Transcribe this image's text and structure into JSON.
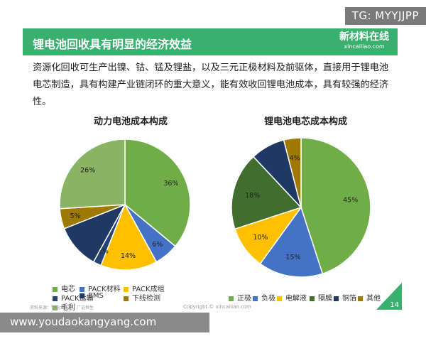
{
  "watermark_top": "TG: MYYJJPP",
  "header": {
    "title": "锂电池回收具有明显的经济效益",
    "logo_cn": "新材料在线",
    "logo_url": "xincailiao.com"
  },
  "paragraph": "资源化回收可生产出镍、钴、锰及锂盐，以及三元正极材料及前驱体，直接用于锂电池电芯制造，具有构建产业链闭环的重大意义，能有效收回锂电池成本，具有较强的经济性。",
  "footer": {
    "source": "资料来源：智电大数据、广证恒生",
    "copyright": "Copyright © xincailiao.com",
    "page": "14"
  },
  "watermark_bottom": "www.youdaokangyang.com",
  "chart_data": [
    {
      "type": "pie",
      "title": "动力电池成本构成",
      "slices": [
        {
          "label": "电芯",
          "value": 36,
          "color": "#70ad47",
          "label_text": "36%"
        },
        {
          "label": "PACK材料",
          "value": 6,
          "color": "#4472c4",
          "label_text": "6%"
        },
        {
          "label": "PACK成组",
          "value": 14,
          "color": "#ffc000",
          "label_text": "14%"
        },
        {
          "label": "PACK运输",
          "value": 2,
          "color": "#264478",
          "label_text": "2%"
        },
        {
          "label": "BMS",
          "value": 11,
          "color": "#1f3864",
          "label_text": ""
        },
        {
          "label": "下线检测",
          "value": 5,
          "color": "#9e7b00",
          "label_text": "5%"
        },
        {
          "label": "毛利",
          "value": 26,
          "color": "#8ab463",
          "label_text": "26%"
        }
      ],
      "legend": [
        "电芯",
        "PACK材料",
        "PACK成组",
        "PACK运输",
        "BMS",
        "下线检测",
        "毛利"
      ],
      "legend_colors": [
        "#70ad47",
        "#4472c4",
        "#ffc000",
        "#264478",
        "#1f3864",
        "#9e7b00",
        "#8ab463"
      ]
    },
    {
      "type": "pie",
      "title": "锂电池电芯成本构成",
      "slices": [
        {
          "label": "正极",
          "value": 45,
          "color": "#70ad47",
          "label_text": "45%"
        },
        {
          "label": "负极",
          "value": 15,
          "color": "#4472c4",
          "label_text": "15%"
        },
        {
          "label": "电解液",
          "value": 10,
          "color": "#ffc000",
          "label_text": "10%"
        },
        {
          "label": "隔膜",
          "value": 18,
          "color": "#3f6e2f",
          "label_text": "18%"
        },
        {
          "label": "铜箔",
          "value": 8,
          "color": "#1f3864",
          "label_text": ""
        },
        {
          "label": "其他",
          "value": 4,
          "color": "#9e7b00",
          "label_text": "4%"
        }
      ],
      "legend": [
        "正极",
        "负极",
        "电解液",
        "隔膜",
        "铜箔",
        "其他"
      ],
      "legend_colors": [
        "#70ad47",
        "#4472c4",
        "#ffc000",
        "#3f6e2f",
        "#1f3864",
        "#9e7b00"
      ]
    }
  ]
}
